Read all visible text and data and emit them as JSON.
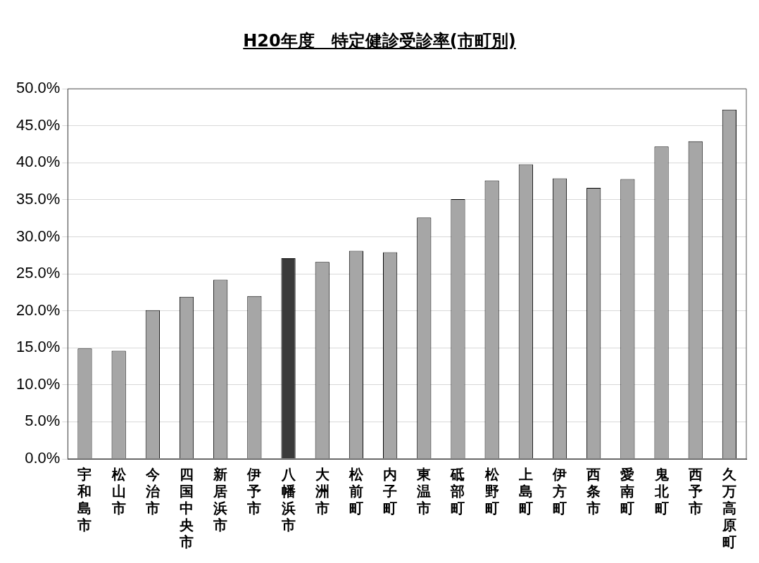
{
  "chart_data": {
    "type": "bar",
    "title": "H20年度　特定健診受診率(市町別)",
    "categories": [
      "宇和島市",
      "松山市",
      "今治市",
      "四国中央市",
      "新居浜市",
      "伊予市",
      "八幡浜市",
      "大洲市",
      "松前町",
      "内子町",
      "東温市",
      "砥部町",
      "松野町",
      "上島町",
      "伊方町",
      "西条市",
      "愛南町",
      "鬼北町",
      "西予市",
      "久万高原町"
    ],
    "values": [
      14.9,
      14.6,
      20.1,
      21.9,
      24.2,
      22.0,
      27.1,
      26.6,
      28.1,
      27.9,
      32.6,
      35.1,
      37.6,
      39.8,
      37.9,
      36.6,
      37.8,
      42.2,
      42.9,
      47.2
    ],
    "colors": [
      "#a6a6a6",
      "#a6a6a6",
      "#a6a6a6",
      "#a6a6a6",
      "#a6a6a6",
      "#a6a6a6",
      "#3a3a3a",
      "#a6a6a6",
      "#a6a6a6",
      "#a6a6a6",
      "#a6a6a6",
      "#a6a6a6",
      "#a6a6a6",
      "#a6a6a6",
      "#a6a6a6",
      "#a6a6a6",
      "#a6a6a6",
      "#a6a6a6",
      "#a6a6a6",
      "#a6a6a6"
    ],
    "ylim": [
      0,
      50
    ],
    "yticks": [
      {
        "value": 0,
        "label": "0.0%"
      },
      {
        "value": 5,
        "label": "5.0%"
      },
      {
        "value": 10,
        "label": "10.0%"
      },
      {
        "value": 15,
        "label": "15.0%"
      },
      {
        "value": 20,
        "label": "20.0%"
      },
      {
        "value": 25,
        "label": "25.0%"
      },
      {
        "value": 30,
        "label": "30.0%"
      },
      {
        "value": 35,
        "label": "35.0%"
      },
      {
        "value": 40,
        "label": "40.0%"
      },
      {
        "value": 45,
        "label": "45.0%"
      },
      {
        "value": 50,
        "label": "50.0%"
      }
    ],
    "grid": "y"
  }
}
